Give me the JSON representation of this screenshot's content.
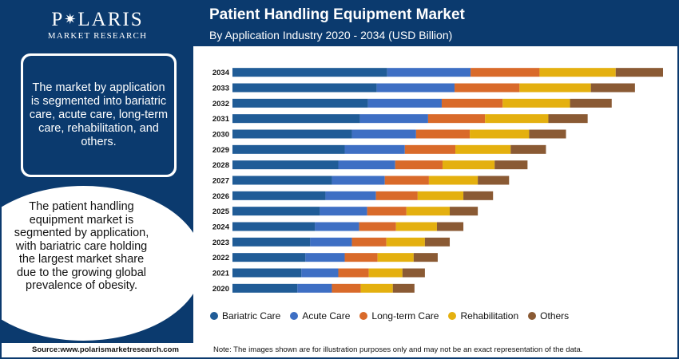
{
  "brand": {
    "name_left": "P",
    "name_right": "LARIS",
    "tagline": "MARKET RESEARCH"
  },
  "header": {
    "title": "Patient Handling Equipment Market",
    "subtitle": "By Application Industry 2020 - 2034 (USD Billion)"
  },
  "sidebar": {
    "box_text": "The market by application is segmented into bariatric care, acute care, long-term care, rehabilitation, and others.",
    "circle_text": "The patient handling equipment market is segmented by application, with bariatric care holding the largest market share due to the growing global prevalence of obesity."
  },
  "footer": {
    "source": "Source:www.polarismarketresearch.com",
    "note": "Note: The images shown are for illustration purposes only and may not be an exact representation of the data."
  },
  "colors": {
    "brand_navy": "#0b3a6e",
    "bariatric": "#205c97",
    "acute": "#3e6fc4",
    "longterm": "#d96a2a",
    "rehab": "#e4b00f",
    "others": "#8a5a34"
  },
  "chart_data": {
    "type": "bar",
    "orientation": "horizontal",
    "stacked": true,
    "categories": [
      "2034",
      "2033",
      "2032",
      "2031",
      "2030",
      "2029",
      "2028",
      "2027",
      "2026",
      "2025",
      "2024",
      "2023",
      "2022",
      "2021",
      "2020"
    ],
    "series": [
      {
        "name": "Bariatric Care",
        "color": "#205c97",
        "values": [
          193,
          180,
          169,
          159,
          149,
          140,
          132,
          124,
          116,
          109,
          103,
          97,
          91,
          86,
          81
        ]
      },
      {
        "name": "Acute Care",
        "color": "#3e6fc4",
        "values": [
          104,
          97,
          92,
          85,
          80,
          75,
          71,
          66,
          63,
          59,
          55,
          52,
          49,
          46,
          43
        ]
      },
      {
        "name": "Long-term Care",
        "color": "#d96a2a",
        "values": [
          86,
          81,
          76,
          71,
          67,
          63,
          59,
          55,
          52,
          49,
          46,
          43,
          41,
          38,
          36
        ]
      },
      {
        "name": "Rehabilitation",
        "color": "#e4b00f",
        "values": [
          95,
          89,
          84,
          79,
          74,
          69,
          65,
          61,
          57,
          54,
          51,
          48,
          45,
          42,
          40
        ]
      },
      {
        "name": "Others",
        "color": "#8a5a34",
        "values": [
          59,
          55,
          52,
          49,
          46,
          44,
          41,
          39,
          37,
          35,
          33,
          31,
          30,
          28,
          27
        ]
      }
    ],
    "legend_position": "bottom"
  }
}
